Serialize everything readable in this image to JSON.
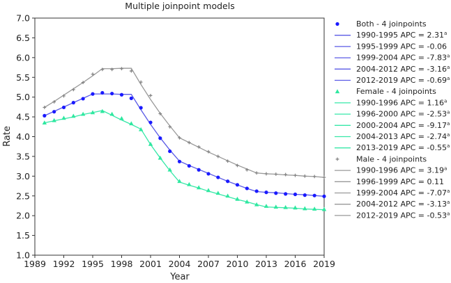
{
  "chart_data": {
    "type": "line",
    "title": "Multiple joinpoint models",
    "xlabel": "Year",
    "ylabel": "Rate",
    "xlim": [
      1989,
      2019
    ],
    "ylim": [
      1.0,
      7.0
    ],
    "x_ticks": [
      "1989",
      "1992",
      "1995",
      "1998",
      "2001",
      "2004",
      "2007",
      "2010",
      "2013",
      "2016",
      "2019"
    ],
    "y_ticks": [
      "1.0",
      "1.5",
      "2.0",
      "2.5",
      "3.0",
      "3.5",
      "4.0",
      "4.5",
      "5.0",
      "5.5",
      "6.0",
      "6.5",
      "7.0"
    ],
    "grid": false,
    "legend_position": "right",
    "series": [
      {
        "name": "Both - 4 joinpoints",
        "color": "#1a1aff",
        "line_color": "#5a5ae6",
        "marker": "circle",
        "x": [
          1990,
          1991,
          1992,
          1993,
          1994,
          1995,
          1996,
          1997,
          1998,
          1999,
          2000,
          2001,
          2002,
          2003,
          2004,
          2005,
          2006,
          2007,
          2008,
          2009,
          2010,
          2011,
          2012,
          2013,
          2014,
          2015,
          2016,
          2017,
          2018,
          2019
        ],
        "observed": [
          4.53,
          4.63,
          4.74,
          4.86,
          4.96,
          5.08,
          5.11,
          5.09,
          5.06,
          4.97,
          4.73,
          4.36,
          3.96,
          3.63,
          3.37,
          3.26,
          3.16,
          3.06,
          2.97,
          2.87,
          2.78,
          2.69,
          2.62,
          2.59,
          2.57,
          2.55,
          2.54,
          2.52,
          2.51,
          2.49
        ],
        "fitted": [
          4.53,
          4.64,
          4.75,
          4.86,
          4.97,
          5.08,
          5.08,
          5.08,
          5.07,
          5.07,
          4.68,
          4.31,
          3.97,
          3.66,
          3.38,
          3.27,
          3.17,
          3.07,
          2.97,
          2.87,
          2.78,
          2.69,
          2.61,
          2.59,
          2.58,
          2.56,
          2.54,
          2.53,
          2.51,
          2.49
        ],
        "segments": [
          {
            "label": "1990-1995 APC = 2.31",
            "sup": "a"
          },
          {
            "label": "1995-1999 APC = -0.06",
            "sup": ""
          },
          {
            "label": "1999-2004 APC = -7.83",
            "sup": "a"
          },
          {
            "label": "2004-2012 APC = -3.16",
            "sup": "a"
          },
          {
            "label": "2012-2019 APC = -0.69",
            "sup": "a"
          }
        ]
      },
      {
        "name": "Female - 4 joinpoints",
        "color": "#2ee8a0",
        "line_color": "#36e8a8",
        "marker": "triangle",
        "x": [
          1990,
          1991,
          1992,
          1993,
          1994,
          1995,
          1996,
          1997,
          1998,
          1999,
          2000,
          2001,
          2002,
          2003,
          2004,
          2005,
          2006,
          2007,
          2008,
          2009,
          2010,
          2011,
          2012,
          2013,
          2014,
          2015,
          2016,
          2017,
          2018,
          2019
        ],
        "observed": [
          4.35,
          4.41,
          4.47,
          4.52,
          4.57,
          4.61,
          4.64,
          4.57,
          4.46,
          4.33,
          4.18,
          3.81,
          3.46,
          3.16,
          2.87,
          2.79,
          2.71,
          2.64,
          2.57,
          2.5,
          2.42,
          2.35,
          2.28,
          2.24,
          2.22,
          2.21,
          2.2,
          2.18,
          2.17,
          2.16
        ],
        "fitted": [
          4.35,
          4.4,
          4.45,
          4.5,
          4.56,
          4.61,
          4.66,
          4.54,
          4.42,
          4.31,
          4.19,
          3.8,
          3.46,
          3.14,
          2.85,
          2.77,
          2.7,
          2.62,
          2.55,
          2.48,
          2.41,
          2.35,
          2.28,
          2.22,
          2.21,
          2.2,
          2.19,
          2.17,
          2.16,
          2.15
        ],
        "segments": [
          {
            "label": "1990-1996 APC = 1.16",
            "sup": "a"
          },
          {
            "label": "1996-2000 APC = -2.53",
            "sup": "a"
          },
          {
            "label": "2000-2004 APC = -9.17",
            "sup": "a"
          },
          {
            "label": "2004-2013 APC = -2.74",
            "sup": "a"
          },
          {
            "label": "2013-2019 APC = -0.55",
            "sup": "a"
          }
        ]
      },
      {
        "name": "Male - 4 joinpoints",
        "color": "#808080",
        "line_color": "#999999",
        "marker": "plus",
        "x": [
          1990,
          1991,
          1992,
          1993,
          1994,
          1995,
          1996,
          1997,
          1998,
          1999,
          2000,
          2001,
          2002,
          2003,
          2004,
          2005,
          2006,
          2007,
          2008,
          2009,
          2010,
          2011,
          2012,
          2013,
          2014,
          2015,
          2016,
          2017,
          2018,
          2019
        ],
        "observed": [
          4.74,
          4.88,
          5.03,
          5.19,
          5.37,
          5.58,
          5.7,
          5.7,
          5.72,
          5.66,
          5.38,
          5.04,
          4.58,
          4.25,
          3.97,
          3.85,
          3.74,
          3.62,
          3.5,
          3.38,
          3.27,
          3.16,
          3.08,
          3.06,
          3.05,
          3.04,
          3.02,
          3.0,
          2.99,
          2.97
        ],
        "fitted": [
          4.74,
          4.89,
          5.05,
          5.21,
          5.37,
          5.54,
          5.72,
          5.72,
          5.73,
          5.73,
          5.32,
          4.94,
          4.59,
          4.27,
          3.97,
          3.85,
          3.73,
          3.61,
          3.5,
          3.39,
          3.28,
          3.18,
          3.08,
          3.06,
          3.05,
          3.03,
          3.02,
          3.0,
          2.99,
          2.97
        ],
        "segments": [
          {
            "label": "1990-1996 APC = 3.19",
            "sup": "a"
          },
          {
            "label": "1996-1999 APC = 0.11",
            "sup": ""
          },
          {
            "label": "1999-2004 APC = -7.07",
            "sup": "a"
          },
          {
            "label": "2004-2012 APC = -3.13",
            "sup": "a"
          },
          {
            "label": "2012-2019 APC = -0.53",
            "sup": "a"
          }
        ]
      }
    ]
  }
}
